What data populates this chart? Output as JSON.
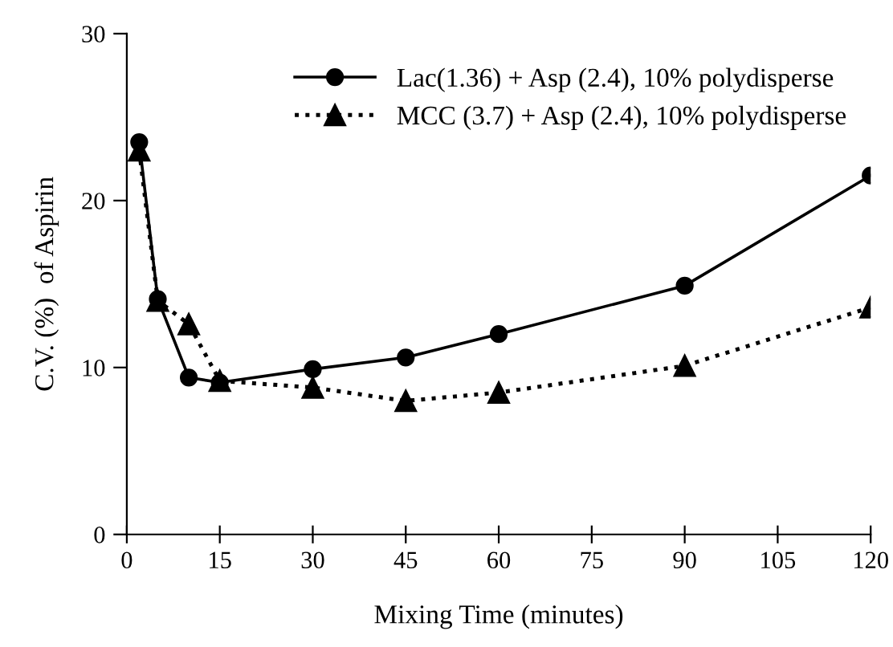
{
  "chart_data": {
    "type": "line",
    "xlabel": "Mixing Time (minutes)",
    "ylabel": "C.V. (%)  of Aspirin",
    "x": [
      2,
      5,
      10,
      15,
      30,
      45,
      60,
      90,
      120
    ],
    "series": [
      {
        "name": "Lac(1.36) + Asp (2.4), 10% polydisperse",
        "color": "#000000",
        "marker": "circle",
        "line_style": "solid",
        "values": [
          23.5,
          14.1,
          9.4,
          9.1,
          9.9,
          10.6,
          12.0,
          14.9,
          21.5
        ]
      },
      {
        "name": "MCC (3.7) + Asp (2.4), 10% polydisperse",
        "color": "#000000",
        "marker": "triangle",
        "line_style": "dotted",
        "values": [
          23.0,
          14.0,
          12.6,
          9.2,
          8.8,
          8.0,
          8.5,
          10.1,
          13.6
        ]
      }
    ],
    "xlim": [
      0,
      120
    ],
    "xticks": [
      0,
      15,
      30,
      45,
      60,
      75,
      90,
      105,
      120
    ],
    "ylim": [
      0,
      30
    ],
    "yticks": [
      0,
      10,
      20,
      30
    ],
    "grid": false,
    "legend": "top right"
  }
}
